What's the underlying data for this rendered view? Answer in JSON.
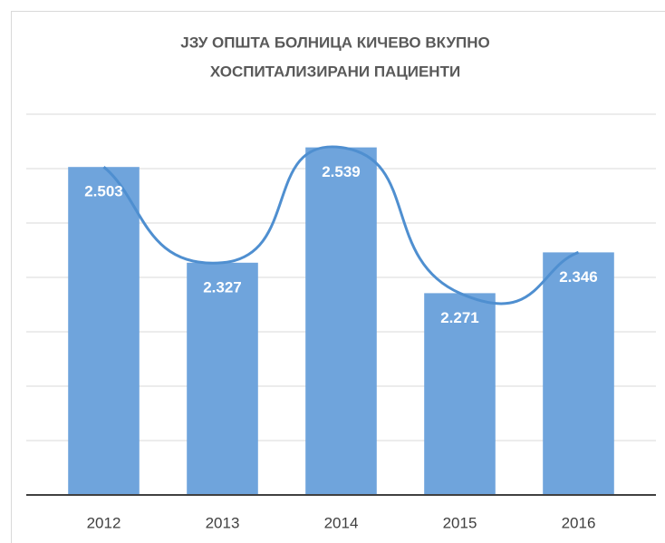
{
  "chart_data": {
    "type": "bar",
    "title": [
      "ЈЗУ ОПШТА БОЛНИЦА КИЧЕВО ВКУПНО",
      "ХОСПИТАЛИЗИРАНИ ПАЦИЕНТИ"
    ],
    "categories": [
      "2012",
      "2013",
      "2014",
      "2015",
      "2016"
    ],
    "values": [
      2503,
      2327,
      2539,
      2271,
      2346
    ],
    "value_labels": [
      "2.503",
      "2.327",
      "2.539",
      "2.271",
      "2.346"
    ],
    "color": "#6fa4dc",
    "line_color": "#4f8fd0",
    "ylim": [
      1900,
      2600
    ],
    "yticks": [
      1900,
      2000,
      2100,
      2200,
      2300,
      2400,
      2500,
      2600
    ],
    "grid": true
  }
}
